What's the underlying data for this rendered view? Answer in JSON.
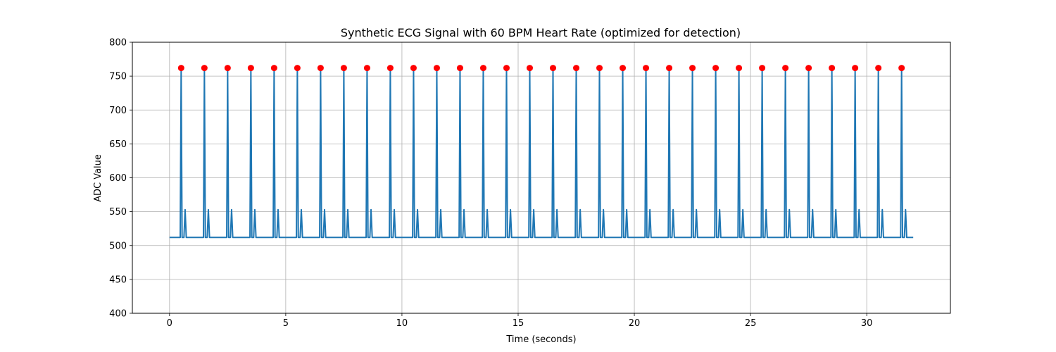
{
  "chart_data": {
    "type": "line",
    "title": "Synthetic ECG Signal with 60 BPM Heart Rate (optimized for detection)",
    "xlabel": "Time (seconds)",
    "ylabel": "ADC Value",
    "xlim": [
      -1.6,
      33.6
    ],
    "ylim": [
      400,
      800
    ],
    "xticks": [
      0,
      5,
      10,
      15,
      20,
      25,
      30
    ],
    "yticks": [
      400,
      450,
      500,
      550,
      600,
      650,
      700,
      750,
      800
    ],
    "grid": true,
    "legend": "none",
    "signal": {
      "x_start": 0,
      "x_end": 32,
      "baseline": 512,
      "r_peak_value": 762,
      "t_wave_value": 553,
      "r_peak_offset": 0.5,
      "t_wave_offset": 0.67,
      "beat_interval": 1.0,
      "color": "#1f77b4"
    },
    "series": [
      {
        "marker": "o",
        "color": "#ff0000",
        "x": [
          0.5,
          1.5,
          2.5,
          3.5,
          4.5,
          5.5,
          6.5,
          7.5,
          8.5,
          9.5,
          10.5,
          11.5,
          12.5,
          13.5,
          14.5,
          15.5,
          16.5,
          17.5,
          18.5,
          19.5,
          20.5,
          21.5,
          22.5,
          23.5,
          24.5,
          25.5,
          26.5,
          27.5,
          28.5,
          29.5,
          30.5,
          31.5
        ],
        "y": [
          762,
          762,
          762,
          762,
          762,
          762,
          762,
          762,
          762,
          762,
          762,
          762,
          762,
          762,
          762,
          762,
          762,
          762,
          762,
          762,
          762,
          762,
          762,
          762,
          762,
          762,
          762,
          762,
          762,
          762,
          762,
          762
        ]
      }
    ]
  }
}
